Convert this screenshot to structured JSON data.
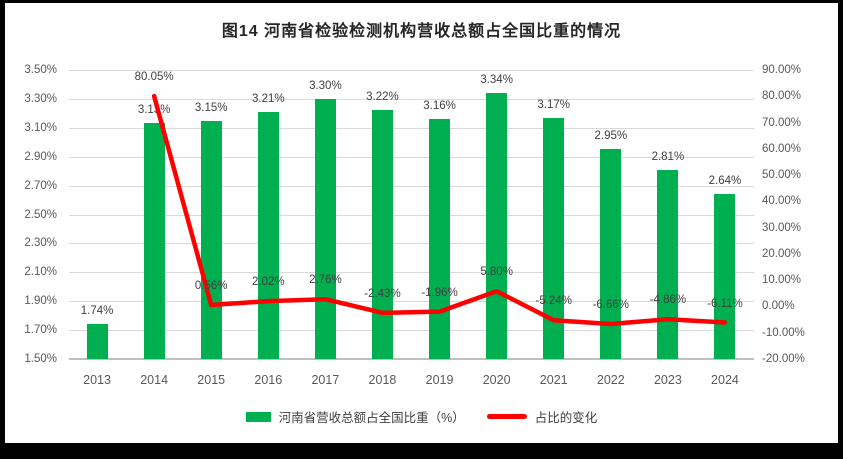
{
  "title": "图14 河南省检验检测机构营收总额占全国比重的情况",
  "legend": [
    {
      "label": "河南省营收总额占全国比重（%）",
      "swatch": "bar",
      "color": "#00B050"
    },
    {
      "label": "占比的变化",
      "swatch": "line",
      "color": "#FF0000"
    }
  ],
  "colors": {
    "bar": "#00B050",
    "line": "#FF0000",
    "gridline": "#D9D9D9",
    "axis_line": "#BFBFBF",
    "tick_text": "#595959",
    "data_label_text": "#404040",
    "frame": "#000000",
    "background": "#FFFFFF"
  },
  "chart_data": {
    "type": "bar",
    "subtype": "bar-line-combo",
    "title": "图14 河南省检验检测机构营收总额占全国比重的情况",
    "categories": [
      "2013",
      "2014",
      "2015",
      "2016",
      "2017",
      "2018",
      "2019",
      "2020",
      "2021",
      "2022",
      "2023",
      "2024"
    ],
    "series": [
      {
        "name": "河南省营收总额占全国比重（%）",
        "type": "bar",
        "axis": "left",
        "color": "#00B050",
        "values": [
          1.74,
          3.13,
          3.15,
          3.21,
          3.3,
          3.22,
          3.16,
          3.34,
          3.17,
          2.95,
          2.81,
          2.64
        ],
        "labels": [
          "1.74%",
          "3.13%",
          "3.15%",
          "3.21%",
          "3.30%",
          "3.22%",
          "3.16%",
          "3.34%",
          "3.17%",
          "2.95%",
          "2.81%",
          "2.64%"
        ]
      },
      {
        "name": "占比的变化",
        "type": "line",
        "axis": "right",
        "color": "#FF0000",
        "values": [
          null,
          80.05,
          0.56,
          2.02,
          2.76,
          -2.43,
          -1.96,
          5.8,
          -5.24,
          -6.66,
          -4.86,
          -6.11
        ],
        "labels": [
          null,
          "80.05%",
          "0.56%",
          "2.02%",
          "2.76%",
          "-2.43%",
          "-1.96%",
          "5.80%",
          "-5.24%",
          "-6.66%",
          "-4.86%",
          "-6.11%"
        ]
      }
    ],
    "left_axis": {
      "min": 1.5,
      "max": 3.5,
      "step": 0.2,
      "ticks": [
        "3.50%",
        "3.30%",
        "3.10%",
        "2.90%",
        "2.70%",
        "2.50%",
        "2.30%",
        "2.10%",
        "1.90%",
        "1.70%",
        "1.50%"
      ]
    },
    "right_axis": {
      "min": -20,
      "max": 90,
      "step": 10,
      "ticks": [
        "90.00%",
        "80.00%",
        "70.00%",
        "60.00%",
        "50.00%",
        "40.00%",
        "30.00%",
        "20.00%",
        "10.00%",
        "0.00%",
        "-10.00%",
        "-20.00%"
      ]
    },
    "grid": true,
    "legend_position": "bottom",
    "data_labels": "above"
  }
}
